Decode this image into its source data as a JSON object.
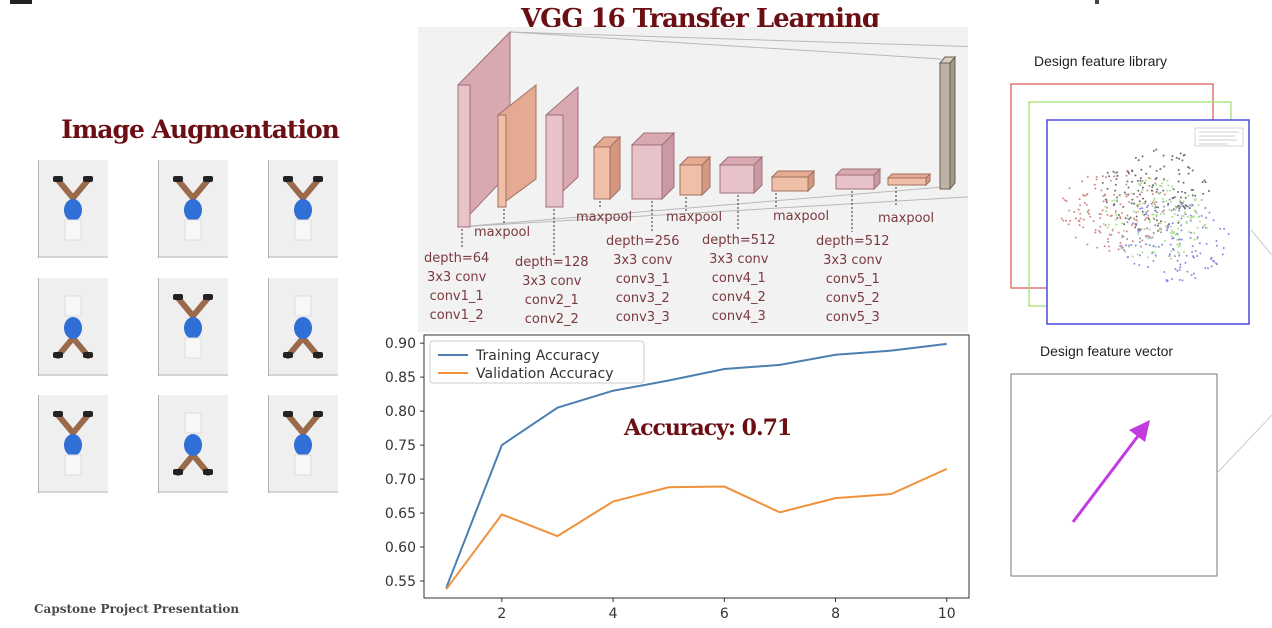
{
  "slide": {
    "title": "VGG 16 Transfer Learning",
    "augmentation_title": "Image Augmentation",
    "footer": "Capstone Project Presentation",
    "accuracy_label": "Accuracy: 0.71"
  },
  "vgg_labels": {
    "maxpool_1": "maxpool",
    "maxpool_2": "maxpool",
    "maxpool_3": "maxpool",
    "maxpool_4": "maxpool",
    "maxpool_5": "maxpool",
    "block1": "depth=64\n3x3 conv\nconv1_1\nconv1_2",
    "block2": "depth=128\n3x3 conv\nconv2_1\nconv2_2",
    "block3": "depth=256\n3x3 conv\nconv3_1\nconv3_2\nconv3_3",
    "block4": "depth=512\n3x3 conv\nconv4_1\nconv4_2\nconv4_3",
    "block5": "depth=512\n3x3 conv\nconv5_1\nconv5_2\nconv5_3"
  },
  "side": {
    "library_label": "Design feature library",
    "vector_label": "Design feature vector"
  },
  "colors": {
    "title": "#6b0f14",
    "training": "#4c7fb0",
    "validation": "#f0913a",
    "arrow": "#c23be0",
    "layer_pink": "#e8c2c9",
    "layer_peach": "#efbfa8"
  },
  "chart_data": {
    "type": "line",
    "x": [
      1,
      2,
      3,
      4,
      5,
      6,
      7,
      8,
      9,
      10
    ],
    "series": [
      {
        "name": "Training Accuracy",
        "values": [
          0.54,
          0.75,
          0.805,
          0.83,
          0.845,
          0.862,
          0.868,
          0.883,
          0.889,
          0.899
        ]
      },
      {
        "name": "Validation Accuracy",
        "values": [
          0.538,
          0.648,
          0.616,
          0.667,
          0.688,
          0.689,
          0.651,
          0.672,
          0.678,
          0.715
        ]
      }
    ],
    "xlim": [
      0.6,
      10.4
    ],
    "ylim": [
      0.525,
      0.912
    ],
    "xticks": [
      2,
      4,
      6,
      8,
      10
    ],
    "yticks": [
      0.55,
      0.6,
      0.65,
      0.7,
      0.75,
      0.8,
      0.85,
      0.9
    ],
    "legend": "top-left",
    "grid": false
  }
}
